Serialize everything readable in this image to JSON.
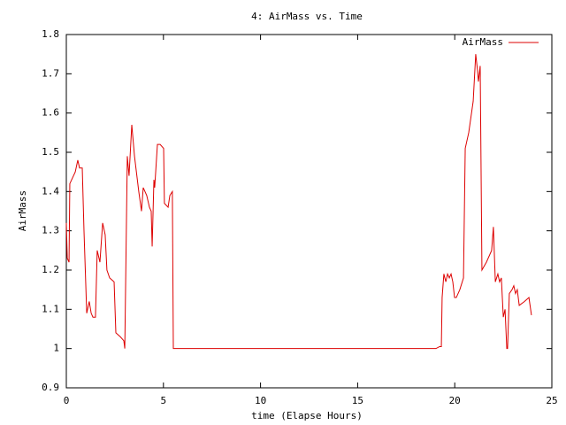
{
  "chart_data": {
    "type": "line",
    "title": "4: AirMass vs. Time",
    "xlabel": "time (Elapse Hours)",
    "ylabel": "AirMass",
    "xlim": [
      0,
      25
    ],
    "xticks": [
      0,
      5,
      10,
      15,
      20,
      25
    ],
    "ylim": [
      0.9,
      1.8
    ],
    "yticks": [
      0.9,
      1,
      1.1,
      1.2,
      1.3,
      1.4,
      1.5,
      1.6,
      1.7,
      1.8
    ],
    "legend": "upper right",
    "x": [
      0,
      0.05,
      0.14,
      0.18,
      0.46,
      0.59,
      0.68,
      0.82,
      0.91,
      1.05,
      1.18,
      1.28,
      1.37,
      1.5,
      1.59,
      1.73,
      1.87,
      2.0,
      2.09,
      2.23,
      2.46,
      2.55,
      2.78,
      2.96,
      3.01,
      3.14,
      3.23,
      3.37,
      3.51,
      3.73,
      3.87,
      3.96,
      4.14,
      4.28,
      4.37,
      4.42,
      4.51,
      4.55,
      4.69,
      4.83,
      5.01,
      5.05,
      5.24,
      5.33,
      5.46,
      5.51,
      19.03,
      19.22,
      19.31,
      19.35,
      19.44,
      19.54,
      19.63,
      19.72,
      19.81,
      19.9,
      19.99,
      20.08,
      20.26,
      20.45,
      20.54,
      20.72,
      20.95,
      21.08,
      21.17,
      21.22,
      21.31,
      21.4,
      21.63,
      21.9,
      21.99,
      22.09,
      22.22,
      22.31,
      22.4,
      22.5,
      22.59,
      22.68,
      22.72,
      22.81,
      22.95,
      23.04,
      23.13,
      23.22,
      23.32,
      23.59,
      23.82,
      23.95
    ],
    "series": [
      {
        "name": "AirMass",
        "color": "#dd0000",
        "values": [
          1.32,
          1.23,
          1.22,
          1.42,
          1.45,
          1.48,
          1.46,
          1.46,
          1.3,
          1.09,
          1.12,
          1.09,
          1.08,
          1.08,
          1.25,
          1.22,
          1.32,
          1.29,
          1.2,
          1.18,
          1.17,
          1.04,
          1.03,
          1.02,
          1.0,
          1.49,
          1.44,
          1.57,
          1.49,
          1.4,
          1.35,
          1.41,
          1.39,
          1.36,
          1.35,
          1.26,
          1.43,
          1.41,
          1.52,
          1.52,
          1.51,
          1.37,
          1.36,
          1.39,
          1.4,
          1.0,
          1.0,
          1.005,
          1.005,
          1.13,
          1.19,
          1.17,
          1.19,
          1.18,
          1.19,
          1.17,
          1.13,
          1.13,
          1.15,
          1.18,
          1.51,
          1.55,
          1.63,
          1.75,
          1.71,
          1.68,
          1.72,
          1.2,
          1.22,
          1.25,
          1.31,
          1.17,
          1.19,
          1.17,
          1.18,
          1.08,
          1.1,
          1.0,
          1.0,
          1.14,
          1.15,
          1.16,
          1.14,
          1.15,
          1.11,
          1.12,
          1.13,
          1.085
        ]
      }
    ]
  }
}
